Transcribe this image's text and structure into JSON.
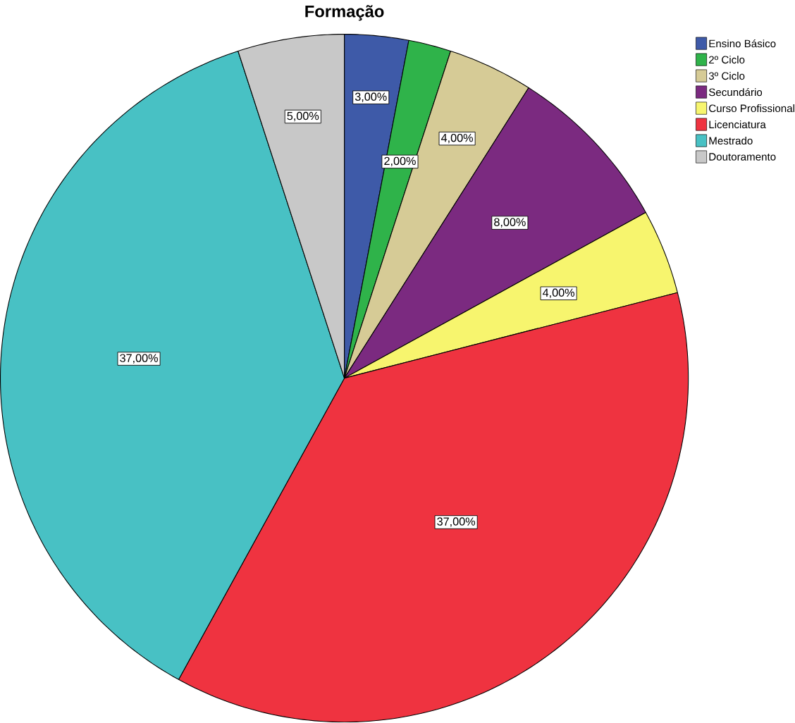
{
  "chart_data": {
    "type": "pie",
    "title": "Formação",
    "categories": [
      "Ensino Básico",
      "2º Ciclo",
      "3º Ciclo",
      "Secundário",
      "Curso Profissional",
      "Licenciatura",
      "Mestrado",
      "Doutoramento"
    ],
    "values": [
      3,
      2,
      4,
      8,
      4,
      37,
      37,
      5
    ],
    "colors": [
      "#3e5aa8",
      "#2fb34a",
      "#d6cb96",
      "#7b2a80",
      "#f7f56e",
      "#ef3340",
      "#48c1c4",
      "#c8c8c8"
    ],
    "value_labels": [
      "3,00%",
      "2,00%",
      "4,00%",
      "8,00%",
      "4,00%",
      "37,00%",
      "37,00%",
      "5,00%"
    ],
    "legend": "top right"
  }
}
